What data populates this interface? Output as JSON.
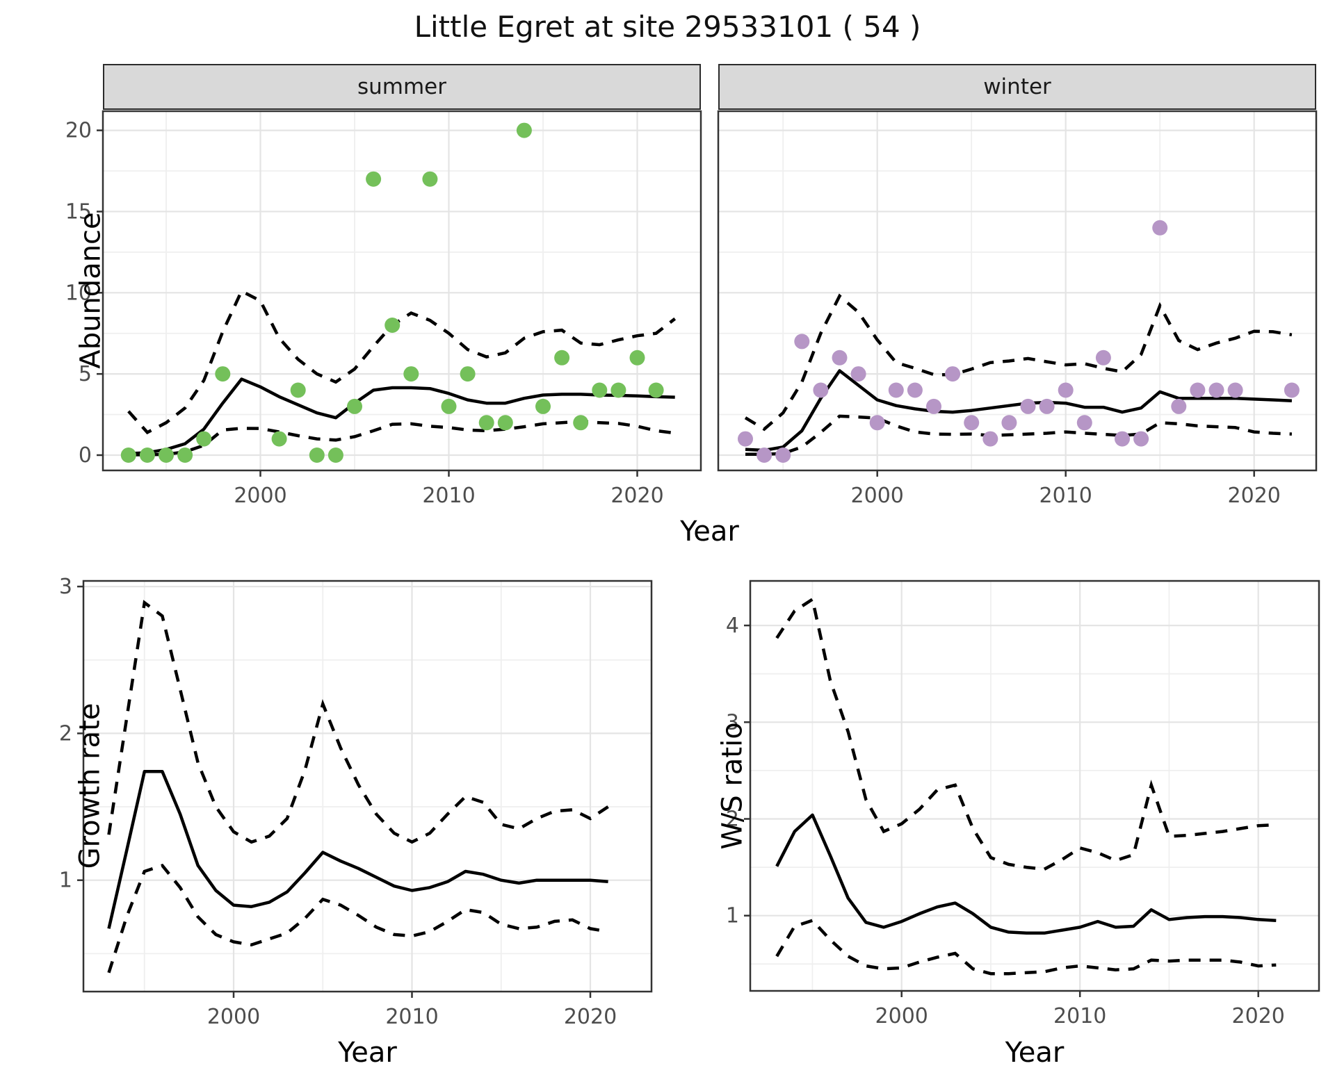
{
  "title": "Little Egret at site 29533101 ( 54 )",
  "axis_titles": {
    "x_top": "Year",
    "x_growth": "Year",
    "x_ws": "Year",
    "y_abundance": "Abundance",
    "y_growth": "Growth rate",
    "y_ws": "W/S ratio"
  },
  "colors": {
    "summer_point": "#74c05a",
    "winter_point": "#b696c6",
    "trend_line": "#000000",
    "ci_line": "#000000",
    "strip_fill": "#d9d9d9",
    "panel_border": "#333333",
    "grid_major": "#e4e4e4",
    "grid_minor": "#efefef",
    "tick_mark": "#333333",
    "tick_label": "#4d4d4d"
  },
  "chart_data": [
    {
      "id": "abundance-summer",
      "type": "scatter",
      "facet_label": "summer",
      "ylabel": "Abundance",
      "xlabel": "Year",
      "xlim": [
        1991.6,
        2023.4
      ],
      "ylim": [
        -0.95,
        21.2
      ],
      "xticks": [
        2000,
        2010,
        2020
      ],
      "xticks_minor": [
        1995,
        2005,
        2015
      ],
      "yticks": [
        0,
        5,
        10,
        15,
        20
      ],
      "yticks_minor": [
        2.5,
        7.5,
        12.5,
        17.5
      ],
      "points": {
        "years": [
          1993,
          1994,
          1995,
          1996,
          1997,
          1998,
          2001,
          2002,
          2003,
          2004,
          2005,
          2006,
          2007,
          2008,
          2009,
          2010,
          2011,
          2012,
          2013,
          2014,
          2015,
          2016,
          2017,
          2018,
          2019,
          2020,
          2021
        ],
        "values": [
          0,
          0,
          0,
          0,
          1,
          5,
          1,
          4,
          0,
          0,
          3,
          17,
          8,
          5,
          17,
          3,
          5,
          2,
          2,
          20,
          3,
          6,
          2,
          4,
          4,
          6,
          4
        ]
      },
      "trend": {
        "years": [
          1993,
          1994,
          1995,
          1996,
          1997,
          1998,
          1999,
          2000,
          2001,
          2002,
          2003,
          2004,
          2005,
          2006,
          2007,
          2008,
          2009,
          2010,
          2011,
          2012,
          2013,
          2014,
          2015,
          2016,
          2017,
          2018,
          2019,
          2020,
          2021,
          2022
        ],
        "fit": [
          0.1,
          0.15,
          0.35,
          0.7,
          1.6,
          3.2,
          4.68,
          4.2,
          3.6,
          3.1,
          2.6,
          2.3,
          3.2,
          4.0,
          4.15,
          4.15,
          4.1,
          3.8,
          3.4,
          3.2,
          3.2,
          3.5,
          3.7,
          3.75,
          3.75,
          3.7,
          3.68,
          3.65,
          3.6,
          3.57
        ],
        "upper": [
          2.7,
          1.4,
          2.0,
          2.9,
          4.6,
          7.6,
          10.1,
          9.5,
          7.2,
          5.9,
          5.0,
          4.5,
          5.3,
          6.7,
          8.0,
          8.75,
          8.3,
          7.5,
          6.5,
          6.05,
          6.3,
          7.2,
          7.6,
          7.7,
          6.9,
          6.8,
          7.1,
          7.35,
          7.5,
          8.4
        ],
        "lower": [
          0.02,
          0.02,
          0.05,
          0.2,
          0.6,
          1.55,
          1.65,
          1.64,
          1.43,
          1.2,
          1.0,
          0.93,
          1.14,
          1.5,
          1.9,
          1.93,
          1.78,
          1.7,
          1.55,
          1.5,
          1.6,
          1.75,
          1.93,
          2.0,
          2.07,
          2.0,
          1.95,
          1.78,
          1.5,
          1.36
        ]
      }
    },
    {
      "id": "abundance-winter",
      "type": "scatter",
      "facet_label": "winter",
      "ylabel": "Abundance",
      "xlabel": "Year",
      "xlim": [
        1991.6,
        2023.4
      ],
      "ylim": [
        -0.95,
        21.2
      ],
      "xticks": [
        2000,
        2010,
        2020
      ],
      "xticks_minor": [
        1995,
        2005,
        2015
      ],
      "yticks": [
        0,
        5,
        10,
        15,
        20
      ],
      "yticks_minor": [
        2.5,
        7.5,
        12.5,
        17.5
      ],
      "show_ytick_labels": false,
      "points": {
        "years": [
          1993,
          1994,
          1995,
          1996,
          1997,
          1998,
          1999,
          2000,
          2001,
          2002,
          2003,
          2004,
          2005,
          2006,
          2007,
          2008,
          2009,
          2010,
          2011,
          2012,
          2013,
          2014,
          2015,
          2016,
          2017,
          2018,
          2019,
          2022
        ],
        "values": [
          1,
          0,
          0,
          7,
          4,
          6,
          5,
          2,
          4,
          4,
          3,
          5,
          2,
          1,
          2,
          3,
          3,
          4,
          2,
          6,
          1,
          1,
          14,
          3,
          4,
          4,
          4,
          4
        ]
      },
      "trend": {
        "years": [
          1993,
          1994,
          1995,
          1996,
          1997,
          1998,
          1999,
          2000,
          2001,
          2002,
          2003,
          2004,
          2005,
          2006,
          2007,
          2008,
          2009,
          2010,
          2011,
          2012,
          2013,
          2014,
          2015,
          2016,
          2017,
          2018,
          2019,
          2020,
          2021,
          2022
        ],
        "fit": [
          0.35,
          0.3,
          0.5,
          1.5,
          3.5,
          5.2,
          4.3,
          3.4,
          3.05,
          2.85,
          2.7,
          2.65,
          2.75,
          2.9,
          3.05,
          3.2,
          3.25,
          3.2,
          2.95,
          2.95,
          2.65,
          2.9,
          3.9,
          3.5,
          3.5,
          3.5,
          3.5,
          3.45,
          3.4,
          3.35
        ],
        "upper": [
          2.3,
          1.6,
          2.6,
          4.5,
          7.5,
          9.8,
          8.8,
          7.1,
          5.7,
          5.35,
          4.96,
          4.95,
          5.3,
          5.7,
          5.8,
          5.95,
          5.75,
          5.56,
          5.63,
          5.35,
          5.13,
          6.2,
          9.2,
          7.06,
          6.5,
          6.9,
          7.2,
          7.63,
          7.6,
          7.41
        ],
        "lower": [
          0.05,
          0.05,
          0.1,
          0.5,
          1.4,
          2.4,
          2.35,
          2.28,
          1.8,
          1.43,
          1.3,
          1.28,
          1.3,
          1.21,
          1.25,
          1.3,
          1.35,
          1.43,
          1.35,
          1.28,
          1.21,
          1.3,
          2.0,
          1.93,
          1.8,
          1.75,
          1.7,
          1.43,
          1.35,
          1.3
        ]
      }
    },
    {
      "id": "growth-rate",
      "type": "line",
      "facet_label": null,
      "ylabel": "Growth rate",
      "xlabel": "Year",
      "xlim": [
        1991.6,
        2023.4
      ],
      "ylim": [
        0.25,
        3.04
      ],
      "xticks": [
        2000,
        2010,
        2020
      ],
      "xticks_minor": [
        1995,
        2005,
        2015
      ],
      "yticks": [
        1,
        2,
        3
      ],
      "yticks_minor": [
        0.5,
        1.5,
        2.5
      ],
      "trend": {
        "years": [
          1993,
          1994,
          1995,
          1996,
          1997,
          1998,
          1999,
          2000,
          2001,
          2002,
          2003,
          2004,
          2005,
          2006,
          2007,
          2008,
          2009,
          2010,
          2011,
          2012,
          2013,
          2014,
          2015,
          2016,
          2017,
          2018,
          2019,
          2020,
          2021
        ],
        "fit": [
          0.67,
          1.2,
          1.74,
          1.74,
          1.45,
          1.1,
          0.93,
          0.83,
          0.82,
          0.85,
          0.92,
          1.05,
          1.19,
          1.13,
          1.08,
          1.02,
          0.96,
          0.93,
          0.95,
          0.99,
          1.06,
          1.04,
          1.0,
          0.98,
          1.0,
          1.0,
          1.0,
          1.0,
          0.99
        ],
        "upper": [
          1.31,
          2.1,
          2.89,
          2.8,
          2.3,
          1.8,
          1.5,
          1.33,
          1.26,
          1.3,
          1.42,
          1.75,
          2.2,
          1.9,
          1.65,
          1.45,
          1.32,
          1.26,
          1.32,
          1.45,
          1.57,
          1.53,
          1.38,
          1.35,
          1.42,
          1.47,
          1.48,
          1.42,
          1.5
        ],
        "lower": [
          0.37,
          0.75,
          1.06,
          1.1,
          0.95,
          0.75,
          0.63,
          0.58,
          0.56,
          0.6,
          0.64,
          0.74,
          0.87,
          0.83,
          0.76,
          0.68,
          0.63,
          0.62,
          0.65,
          0.72,
          0.8,
          0.78,
          0.7,
          0.67,
          0.68,
          0.72,
          0.73,
          0.67,
          0.65
        ]
      }
    },
    {
      "id": "ws-ratio",
      "type": "line",
      "facet_label": null,
      "ylabel": "W/S ratio",
      "xlabel": "Year",
      "xlim": [
        1991.5,
        2023.4
      ],
      "ylim": [
        0.22,
        4.46
      ],
      "xticks": [
        2000,
        2010,
        2020
      ],
      "xticks_minor": [
        1995,
        2005,
        2015
      ],
      "yticks": [
        1,
        2,
        3,
        4
      ],
      "yticks_minor": [
        0.5,
        1.5,
        2.5,
        3.5
      ],
      "trend": {
        "years": [
          1993,
          1994,
          1995,
          1996,
          1997,
          1998,
          1999,
          2000,
          2001,
          2002,
          2003,
          2004,
          2005,
          2006,
          2007,
          2008,
          2009,
          2010,
          2011,
          2012,
          2013,
          2014,
          2015,
          2016,
          2017,
          2018,
          2019,
          2020,
          2021
        ],
        "fit": [
          1.51,
          1.87,
          2.04,
          1.62,
          1.18,
          0.93,
          0.88,
          0.94,
          1.02,
          1.09,
          1.13,
          1.02,
          0.88,
          0.83,
          0.82,
          0.82,
          0.85,
          0.88,
          0.94,
          0.88,
          0.89,
          1.06,
          0.96,
          0.98,
          0.99,
          0.99,
          0.98,
          0.96,
          0.95
        ],
        "upper": [
          3.87,
          4.15,
          4.27,
          3.43,
          2.9,
          2.2,
          1.87,
          1.95,
          2.1,
          2.3,
          2.35,
          1.9,
          1.6,
          1.53,
          1.5,
          1.48,
          1.58,
          1.7,
          1.65,
          1.57,
          1.63,
          2.35,
          1.82,
          1.83,
          1.85,
          1.87,
          1.9,
          1.93,
          1.94
        ],
        "lower": [
          0.58,
          0.89,
          0.95,
          0.75,
          0.58,
          0.48,
          0.45,
          0.46,
          0.52,
          0.57,
          0.61,
          0.45,
          0.4,
          0.4,
          0.41,
          0.42,
          0.46,
          0.48,
          0.46,
          0.44,
          0.45,
          0.54,
          0.53,
          0.54,
          0.54,
          0.54,
          0.52,
          0.48,
          0.49
        ]
      }
    }
  ]
}
